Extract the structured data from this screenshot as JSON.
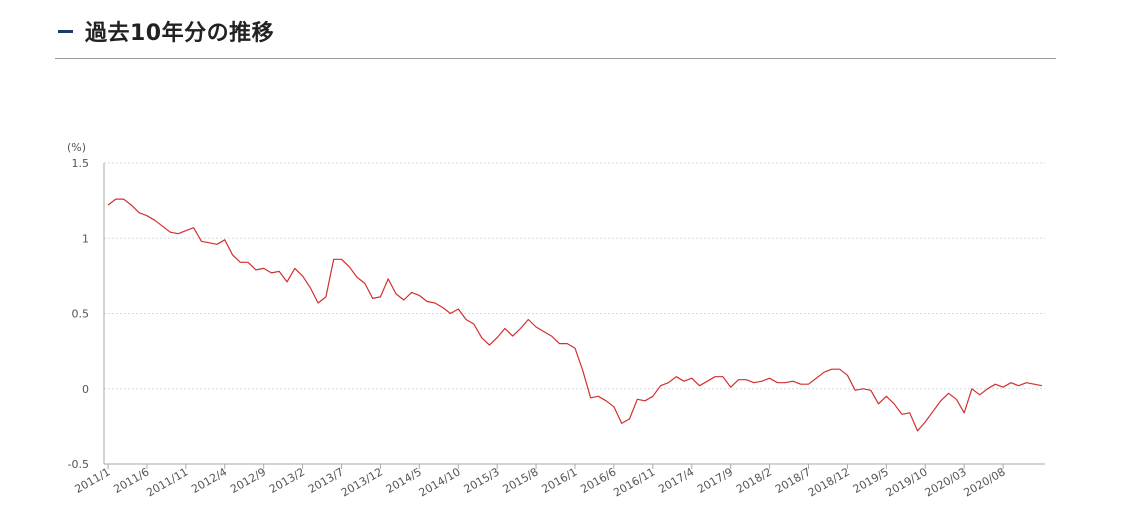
{
  "header": {
    "title": "過去10年分の推移"
  },
  "colors": {
    "line": "#d32f2f",
    "grid": "#d8d8d8",
    "axis": "#aaaaaa",
    "heading_accent": "#1f3b6b"
  },
  "chart_data": {
    "type": "line",
    "title": "",
    "xlabel": "",
    "ylabel": "(%)",
    "ylim": [
      -0.5,
      1.5
    ],
    "yticks": [
      1.5,
      1,
      0.5,
      0,
      -0.5
    ],
    "grid": true,
    "legend": "none",
    "x_tick_labels": [
      "2011/1",
      "2011/6",
      "2011/11",
      "2012/4",
      "2012/9",
      "2013/2",
      "2013/7",
      "2013/12",
      "2014/5",
      "2014/10",
      "2015/3",
      "2015/8",
      "2016/1",
      "2016/6",
      "2016/11",
      "2017/4",
      "2017/9",
      "2018/2",
      "2018/7",
      "2018/12",
      "2019/5",
      "2019/10",
      "2020/03",
      "2020/08"
    ],
    "x_tick_index": [
      0,
      5,
      10,
      15,
      20,
      25,
      30,
      35,
      40,
      45,
      50,
      55,
      60,
      65,
      70,
      75,
      80,
      85,
      90,
      95,
      100,
      105,
      110,
      115
    ],
    "series": [
      {
        "values": [
          1.22,
          1.26,
          1.26,
          1.22,
          1.17,
          1.15,
          1.12,
          1.08,
          1.04,
          1.03,
          1.05,
          1.07,
          0.98,
          0.97,
          0.96,
          0.99,
          0.89,
          0.84,
          0.84,
          0.79,
          0.8,
          0.77,
          0.78,
          0.71,
          0.8,
          0.75,
          0.67,
          0.57,
          0.61,
          0.86,
          0.86,
          0.81,
          0.74,
          0.7,
          0.6,
          0.61,
          0.73,
          0.63,
          0.59,
          0.64,
          0.62,
          0.58,
          0.57,
          0.54,
          0.5,
          0.53,
          0.46,
          0.43,
          0.34,
          0.29,
          0.34,
          0.4,
          0.35,
          0.4,
          0.46,
          0.41,
          0.38,
          0.35,
          0.3,
          0.3,
          0.27,
          0.12,
          -0.06,
          -0.05,
          -0.08,
          -0.12,
          -0.23,
          -0.2,
          -0.07,
          -0.08,
          -0.05,
          0.02,
          0.04,
          0.08,
          0.05,
          0.07,
          0.02,
          0.05,
          0.08,
          0.08,
          0.01,
          0.06,
          0.06,
          0.04,
          0.05,
          0.07,
          0.04,
          0.04,
          0.05,
          0.03,
          0.03,
          0.07,
          0.11,
          0.13,
          0.13,
          0.09,
          -0.01,
          0.0,
          -0.01,
          -0.1,
          -0.05,
          -0.1,
          -0.17,
          -0.16,
          -0.28,
          -0.22,
          -0.15,
          -0.08,
          -0.03,
          -0.07,
          -0.16,
          0.0,
          -0.04,
          0.0,
          0.03,
          0.01,
          0.04,
          0.02,
          0.04,
          0.03,
          0.02
        ]
      }
    ]
  }
}
